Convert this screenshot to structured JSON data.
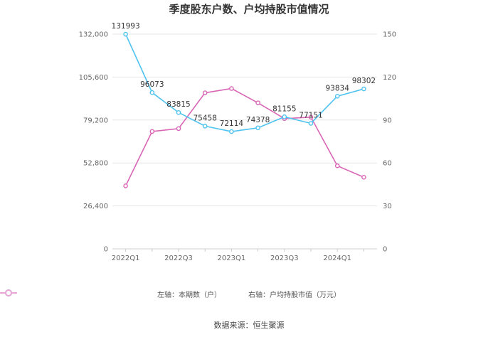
{
  "colors": {
    "left_series": "#4fc3f0",
    "right_series": "#d966b5"
  },
  "chart_data": {
    "type": "line",
    "title": "季度股东户数、户均持股市值情况",
    "x": [
      "2022Q1",
      "2022Q2",
      "2022Q3",
      "2022Q4",
      "2023Q1",
      "2023Q2",
      "2023Q3",
      "2023Q4",
      "2024Q1",
      "2024Q2"
    ],
    "x_tick_labels": [
      "2022Q1",
      "2022Q3",
      "2023Q1",
      "2023Q3",
      "2024Q1"
    ],
    "y_left": {
      "ylim": [
        0,
        132000
      ],
      "ticks": [
        "0",
        "26,400",
        "52,800",
        "79,200",
        "105,600",
        "132,000"
      ]
    },
    "y_right": {
      "ylim": [
        0,
        150
      ],
      "ticks": [
        "0",
        "30",
        "60",
        "90",
        "120",
        "150"
      ]
    },
    "series": [
      {
        "name": "左轴：本期数（户）",
        "axis": "left",
        "values": [
          131993,
          96073,
          83815,
          75458,
          72114,
          74378,
          81155,
          77151,
          93834,
          98302
        ],
        "labels": [
          "131993",
          "96073",
          "83815",
          "75458",
          "72114",
          "74378",
          "81155",
          "77151",
          "93834",
          "98302"
        ]
      },
      {
        "name": "右轴：户均持股市值（万元）",
        "axis": "right",
        "values": [
          44,
          82,
          84,
          109,
          112,
          102,
          91,
          92,
          58,
          50
        ]
      }
    ],
    "legend_position": "bottom",
    "grid": true
  },
  "footer": {
    "source": "数据来源：恒生聚源"
  }
}
